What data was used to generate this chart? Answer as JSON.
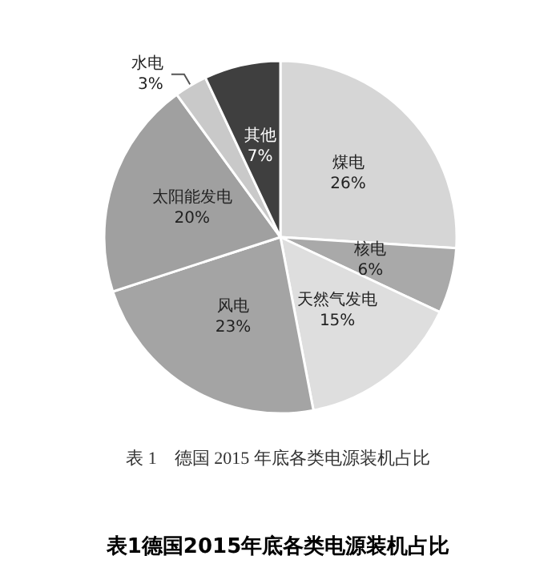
{
  "chart_data": {
    "type": "pie",
    "title": "表1德国2015年底各类电源装机占比",
    "subtitle": "表 1　德国 2015 年底各类电源装机占比",
    "categories": [
      "煤电",
      "核电",
      "天然气发电",
      "风电",
      "太阳能发电",
      "水电",
      "其他"
    ],
    "values": [
      26,
      6,
      15,
      23,
      20,
      3,
      7
    ],
    "value_labels": [
      "26%",
      "6%",
      "15%",
      "23%",
      "20%",
      "3%",
      "7%"
    ],
    "colors": [
      "#d6d6d6",
      "#a9a9a9",
      "#dedede",
      "#a4a4a4",
      "#a0a0a0",
      "#c9c9c9",
      "#3f3f3f"
    ],
    "legend": false
  }
}
